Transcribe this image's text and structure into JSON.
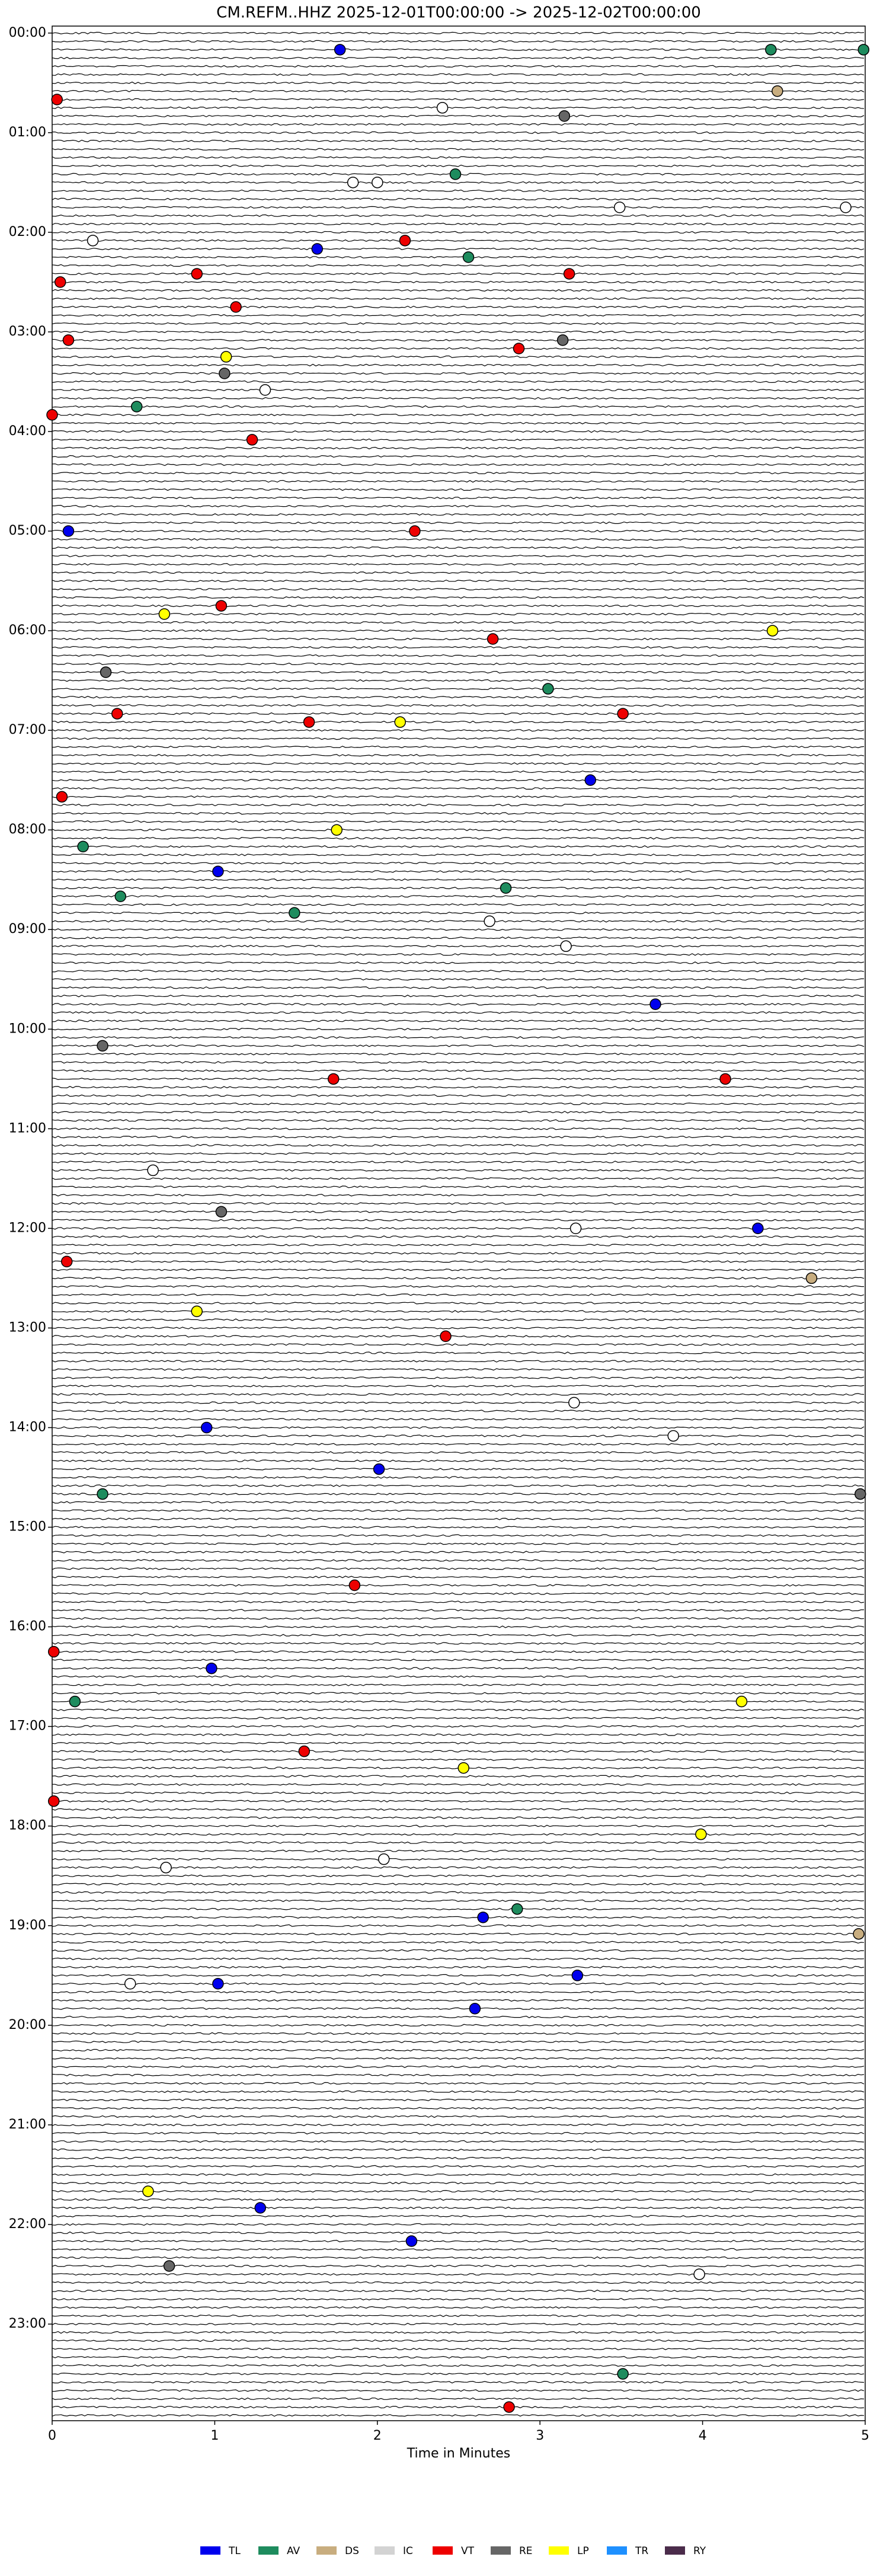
{
  "chart_data": {
    "type": "helicorder",
    "title": "CM.REFM..HHZ  2025-12-01T00:00:00 -> 2025-12-02T00:00:00",
    "x_label": "Time in Minutes",
    "xlim": [
      0,
      5
    ],
    "xticks": [
      0,
      1,
      2,
      3,
      4,
      5
    ],
    "ylim": [
      -0.07,
      23.97
    ],
    "lines_per_hour": 12,
    "yticks": [
      {
        "value": 0,
        "label": "00:00"
      },
      {
        "value": 1,
        "label": "01:00"
      },
      {
        "value": 2,
        "label": "02:00"
      },
      {
        "value": 3,
        "label": "03:00"
      },
      {
        "value": 4,
        "label": "04:00"
      },
      {
        "value": 5,
        "label": "05:00"
      },
      {
        "value": 6,
        "label": "06:00"
      },
      {
        "value": 7,
        "label": "07:00"
      },
      {
        "value": 8,
        "label": "08:00"
      },
      {
        "value": 9,
        "label": "09:00"
      },
      {
        "value": 10,
        "label": "10:00"
      },
      {
        "value": 11,
        "label": "11:00"
      },
      {
        "value": 12,
        "label": "12:00"
      },
      {
        "value": 13,
        "label": "13:00"
      },
      {
        "value": 14,
        "label": "14:00"
      },
      {
        "value": 15,
        "label": "15:00"
      },
      {
        "value": 16,
        "label": "16:00"
      },
      {
        "value": 17,
        "label": "17:00"
      },
      {
        "value": 18,
        "label": "18:00"
      },
      {
        "value": 19,
        "label": "19:00"
      },
      {
        "value": 20,
        "label": "20:00"
      },
      {
        "value": 21,
        "label": "21:00"
      },
      {
        "value": 22,
        "label": "22:00"
      },
      {
        "value": 23,
        "label": "23:00"
      }
    ],
    "classes": [
      {
        "name": "TL",
        "color": "#0000ee"
      },
      {
        "name": "AV",
        "color": "#1e8c5e"
      },
      {
        "name": "DS",
        "color": "#c8ad7f"
      },
      {
        "name": "IC",
        "color": "#d3d3d3"
      },
      {
        "name": "VT",
        "color": "#ee0000"
      },
      {
        "name": "RE",
        "color": "#666666"
      },
      {
        "name": "LP",
        "color": "#ffff00"
      },
      {
        "name": "TR",
        "color": "#1e90ff"
      },
      {
        "name": "RY",
        "color": "#4b2c4b"
      }
    ],
    "events": [
      {
        "x": 1.77,
        "y": 0.167,
        "class": "TL"
      },
      {
        "x": 4.42,
        "y": 0.167,
        "class": "AV"
      },
      {
        "x": 4.99,
        "y": 0.167,
        "class": "AV"
      },
      {
        "x": 4.46,
        "y": 0.583,
        "class": "DS"
      },
      {
        "x": 0.03,
        "y": 0.667,
        "class": "VT"
      },
      {
        "x": 2.4,
        "y": 0.75,
        "class": null
      },
      {
        "x": 3.15,
        "y": 0.833,
        "class": "RE"
      },
      {
        "x": 1.85,
        "y": 1.5,
        "class": null
      },
      {
        "x": 2.0,
        "y": 1.5,
        "class": null
      },
      {
        "x": 2.48,
        "y": 1.417,
        "class": "AV"
      },
      {
        "x": 3.49,
        "y": 1.75,
        "class": null
      },
      {
        "x": 4.88,
        "y": 1.75,
        "class": null
      },
      {
        "x": 0.25,
        "y": 2.083,
        "class": null
      },
      {
        "x": 1.63,
        "y": 2.167,
        "class": "TL"
      },
      {
        "x": 2.17,
        "y": 2.083,
        "class": "VT"
      },
      {
        "x": 2.56,
        "y": 2.25,
        "class": "AV"
      },
      {
        "x": 0.89,
        "y": 2.417,
        "class": "VT"
      },
      {
        "x": 3.18,
        "y": 2.417,
        "class": "VT"
      },
      {
        "x": 0.05,
        "y": 2.5,
        "class": "VT"
      },
      {
        "x": 1.13,
        "y": 2.75,
        "class": "VT"
      },
      {
        "x": 0.1,
        "y": 3.083,
        "class": "VT"
      },
      {
        "x": 3.14,
        "y": 3.083,
        "class": "RE"
      },
      {
        "x": 2.87,
        "y": 3.167,
        "class": "VT"
      },
      {
        "x": 1.07,
        "y": 3.25,
        "class": "LP"
      },
      {
        "x": 1.06,
        "y": 3.417,
        "class": "RE"
      },
      {
        "x": 1.31,
        "y": 3.583,
        "class": null
      },
      {
        "x": 0.52,
        "y": 3.75,
        "class": "AV"
      },
      {
        "x": 0.0,
        "y": 3.833,
        "class": "VT"
      },
      {
        "x": 1.23,
        "y": 4.083,
        "class": "VT"
      },
      {
        "x": 0.1,
        "y": 5.0,
        "class": "TL"
      },
      {
        "x": 2.23,
        "y": 5.0,
        "class": "VT"
      },
      {
        "x": 1.04,
        "y": 5.75,
        "class": "VT"
      },
      {
        "x": 0.69,
        "y": 5.833,
        "class": "LP"
      },
      {
        "x": 2.71,
        "y": 6.083,
        "class": "VT"
      },
      {
        "x": 4.43,
        "y": 6.0,
        "class": "LP"
      },
      {
        "x": 0.33,
        "y": 6.417,
        "class": "RE"
      },
      {
        "x": 3.05,
        "y": 6.583,
        "class": "AV"
      },
      {
        "x": 0.4,
        "y": 6.833,
        "class": "VT"
      },
      {
        "x": 3.51,
        "y": 6.833,
        "class": "VT"
      },
      {
        "x": 1.58,
        "y": 6.917,
        "class": "VT"
      },
      {
        "x": 2.14,
        "y": 6.917,
        "class": "LP"
      },
      {
        "x": 3.31,
        "y": 7.5,
        "class": "TL"
      },
      {
        "x": 0.06,
        "y": 7.667,
        "class": "VT"
      },
      {
        "x": 1.75,
        "y": 8.0,
        "class": "LP"
      },
      {
        "x": 0.19,
        "y": 8.167,
        "class": "AV"
      },
      {
        "x": 1.02,
        "y": 8.417,
        "class": "TL"
      },
      {
        "x": 2.79,
        "y": 8.583,
        "class": "AV"
      },
      {
        "x": 0.42,
        "y": 8.667,
        "class": "AV"
      },
      {
        "x": 1.49,
        "y": 8.833,
        "class": "AV"
      },
      {
        "x": 2.69,
        "y": 8.917,
        "class": null
      },
      {
        "x": 3.16,
        "y": 9.167,
        "class": null
      },
      {
        "x": 3.71,
        "y": 9.75,
        "class": "TL"
      },
      {
        "x": 0.31,
        "y": 10.167,
        "class": "RE"
      },
      {
        "x": 1.73,
        "y": 10.5,
        "class": "VT"
      },
      {
        "x": 4.14,
        "y": 10.5,
        "class": "VT"
      },
      {
        "x": 0.62,
        "y": 11.417,
        "class": null
      },
      {
        "x": 1.04,
        "y": 11.833,
        "class": "RE"
      },
      {
        "x": 4.34,
        "y": 12.0,
        "class": "TL"
      },
      {
        "x": 3.22,
        "y": 12.0,
        "class": null
      },
      {
        "x": 0.09,
        "y": 12.333,
        "class": "VT"
      },
      {
        "x": 4.67,
        "y": 12.5,
        "class": "DS"
      },
      {
        "x": 0.89,
        "y": 12.833,
        "class": "LP"
      },
      {
        "x": 2.42,
        "y": 13.083,
        "class": "VT"
      },
      {
        "x": 3.21,
        "y": 13.75,
        "class": null
      },
      {
        "x": 0.95,
        "y": 14.0,
        "class": "TL"
      },
      {
        "x": 3.82,
        "y": 14.083,
        "class": null
      },
      {
        "x": 2.01,
        "y": 14.417,
        "class": "TL"
      },
      {
        "x": 0.31,
        "y": 14.667,
        "class": "AV"
      },
      {
        "x": 4.97,
        "y": 14.667,
        "class": "RE"
      },
      {
        "x": 1.86,
        "y": 15.583,
        "class": "VT"
      },
      {
        "x": 0.01,
        "y": 16.25,
        "class": "VT"
      },
      {
        "x": 0.98,
        "y": 16.417,
        "class": "TL"
      },
      {
        "x": 0.14,
        "y": 16.75,
        "class": "AV"
      },
      {
        "x": 4.24,
        "y": 16.75,
        "class": "LP"
      },
      {
        "x": 1.55,
        "y": 17.25,
        "class": "VT"
      },
      {
        "x": 2.53,
        "y": 17.417,
        "class": "LP"
      },
      {
        "x": 0.01,
        "y": 17.75,
        "class": "VT"
      },
      {
        "x": 3.99,
        "y": 18.083,
        "class": "LP"
      },
      {
        "x": 2.04,
        "y": 18.333,
        "class": null
      },
      {
        "x": 0.7,
        "y": 18.417,
        "class": null
      },
      {
        "x": 2.86,
        "y": 18.833,
        "class": "AV"
      },
      {
        "x": 2.65,
        "y": 18.917,
        "class": "TL"
      },
      {
        "x": 4.96,
        "y": 19.083,
        "class": "DS"
      },
      {
        "x": 3.23,
        "y": 19.5,
        "class": "TL"
      },
      {
        "x": 1.02,
        "y": 19.583,
        "class": "TL"
      },
      {
        "x": 0.48,
        "y": 19.583,
        "class": null
      },
      {
        "x": 2.6,
        "y": 19.833,
        "class": "TL"
      },
      {
        "x": 0.59,
        "y": 21.667,
        "class": "LP"
      },
      {
        "x": 1.28,
        "y": 21.833,
        "class": "TL"
      },
      {
        "x": 2.21,
        "y": 22.167,
        "class": "TL"
      },
      {
        "x": 0.72,
        "y": 22.417,
        "class": "RE"
      },
      {
        "x": 3.98,
        "y": 22.5,
        "class": null
      },
      {
        "x": 3.51,
        "y": 23.5,
        "class": "AV"
      },
      {
        "x": 2.81,
        "y": 23.833,
        "class": "VT"
      }
    ]
  }
}
